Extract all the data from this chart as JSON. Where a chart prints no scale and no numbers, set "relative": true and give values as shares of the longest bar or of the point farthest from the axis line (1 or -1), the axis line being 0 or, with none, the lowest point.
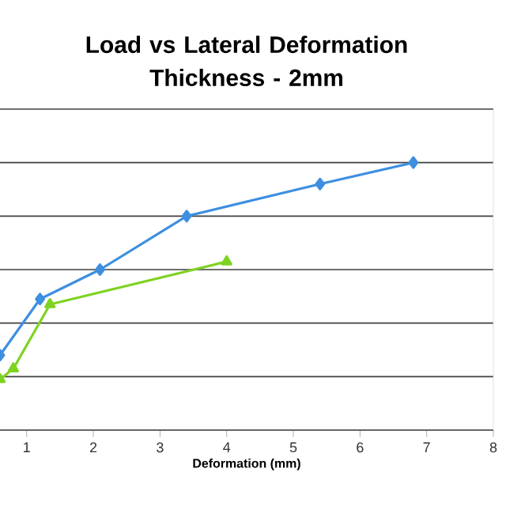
{
  "chart_data": {
    "type": "line",
    "title": "Load vs Lateral Deformation Thickness - 2mm",
    "xlabel": "Deformation (mm)",
    "relative": true,
    "xlim": [
      0.6,
      8
    ],
    "xticks": [
      1,
      2,
      3,
      4,
      5,
      6,
      7,
      8
    ],
    "grid": "y",
    "series": [
      {
        "color": "#3d8fe0",
        "marker": "diamond",
        "x": [
          0.6,
          1.2,
          2.1,
          3.4,
          5.4,
          6.8
        ],
        "values": [
          0.28,
          0.49,
          0.6,
          0.8,
          0.92,
          1.0
        ]
      },
      {
        "color": "#7ed321",
        "marker": "triangle",
        "x": [
          0.6,
          0.8,
          1.35,
          4.0
        ],
        "values": [
          0.19,
          0.23,
          0.47,
          0.63
        ]
      }
    ]
  }
}
